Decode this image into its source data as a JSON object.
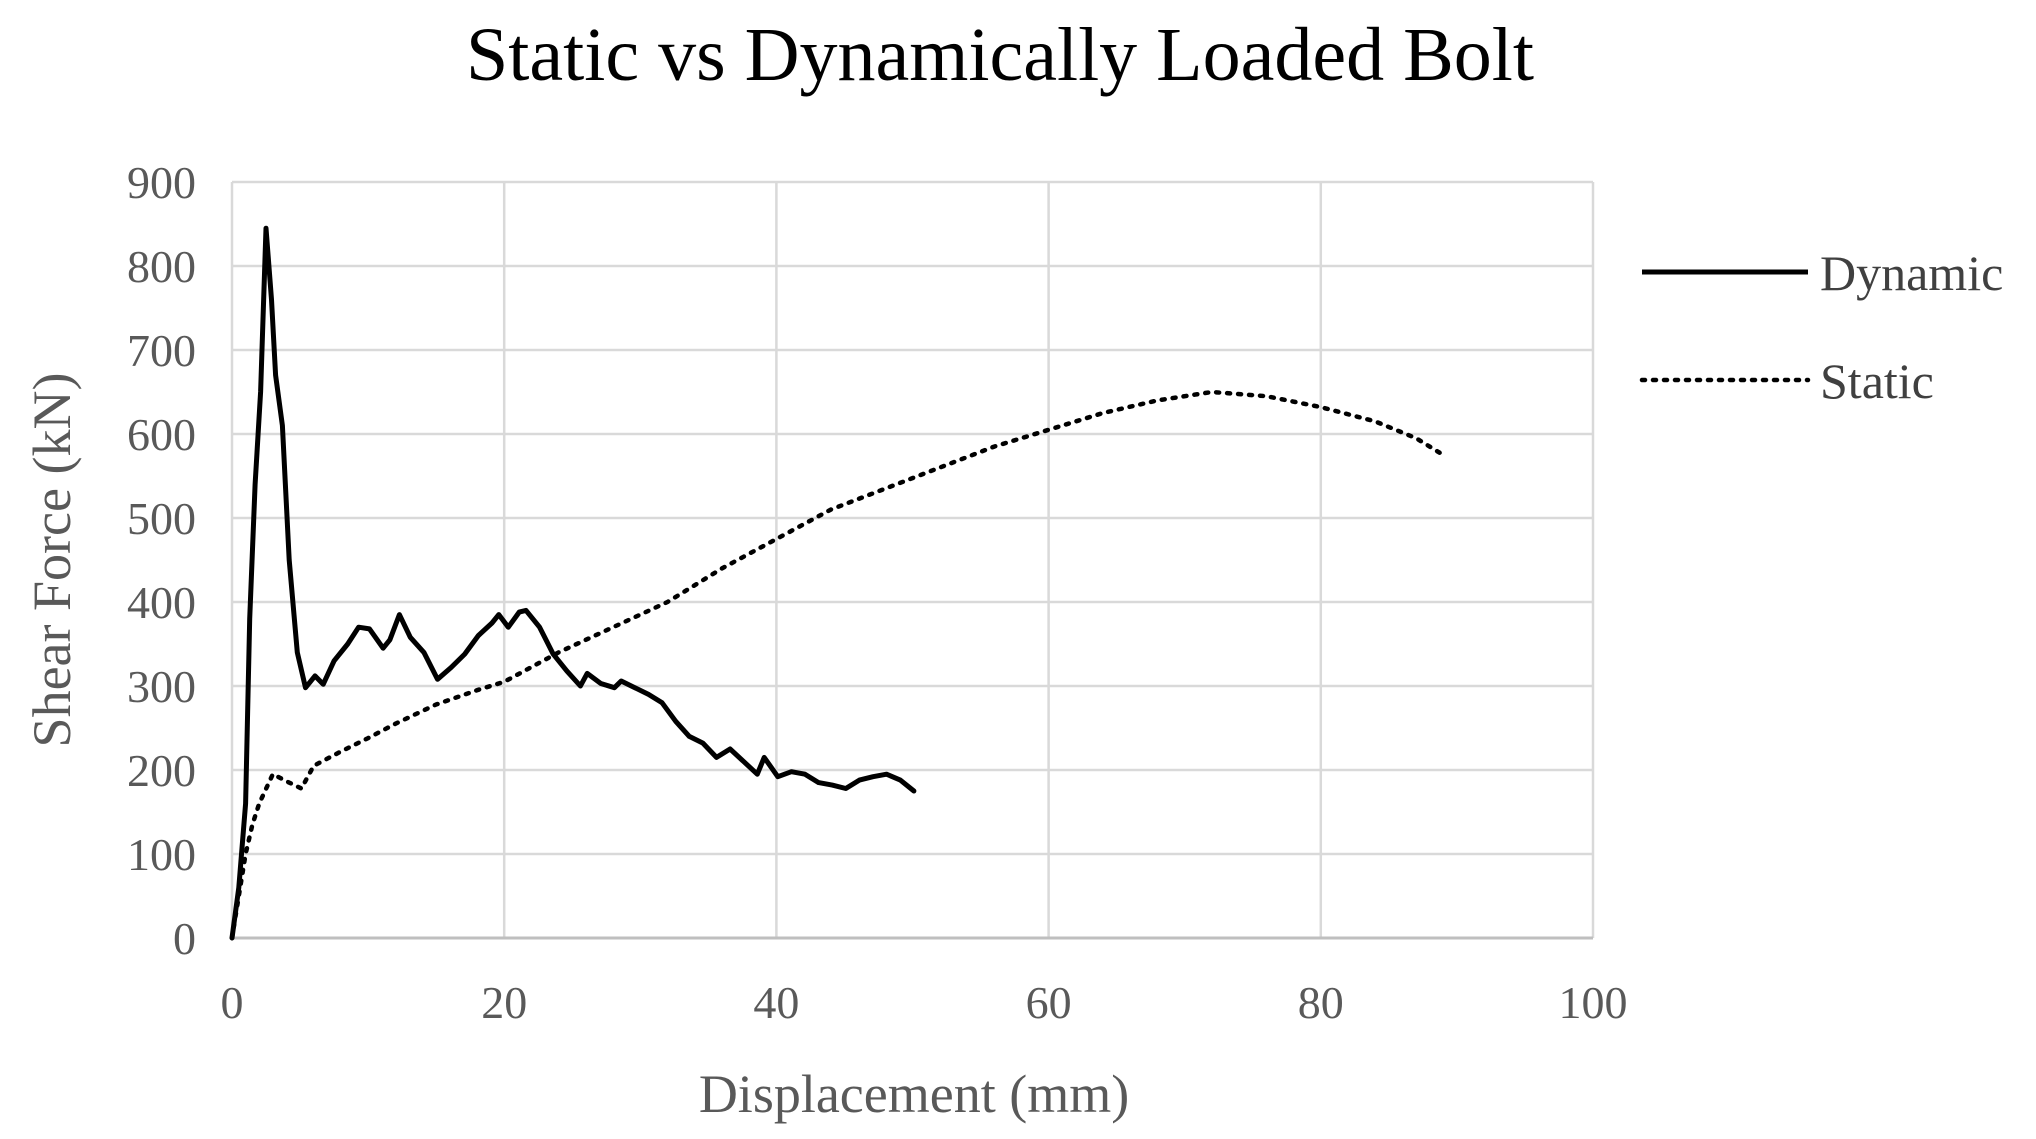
{
  "chart_data": {
    "type": "line",
    "title": "Static vs Dynamically Loaded Bolt",
    "xlabel": "Displacement (mm)",
    "ylabel": "Shear Force (kN)",
    "xlim": [
      0,
      100
    ],
    "ylim": [
      0,
      900
    ],
    "x_ticks": [
      0,
      20,
      40,
      60,
      80,
      100
    ],
    "y_ticks": [
      0,
      100,
      200,
      300,
      400,
      500,
      600,
      700,
      800,
      900
    ],
    "grid": true,
    "legend_position": "right",
    "series": [
      {
        "name": "Dynamic",
        "style": "solid",
        "color": "#000000",
        "points": [
          [
            0,
            0
          ],
          [
            0.5,
            60
          ],
          [
            1,
            160
          ],
          [
            1.3,
            380
          ],
          [
            1.7,
            540
          ],
          [
            2.1,
            650
          ],
          [
            2.5,
            845
          ],
          [
            2.9,
            760
          ],
          [
            3.2,
            670
          ],
          [
            3.7,
            610
          ],
          [
            4.2,
            450
          ],
          [
            4.8,
            340
          ],
          [
            5.4,
            298
          ],
          [
            6.1,
            312
          ],
          [
            6.7,
            302
          ],
          [
            7.5,
            330
          ],
          [
            8.5,
            350
          ],
          [
            9.3,
            370
          ],
          [
            10.1,
            368
          ],
          [
            11.1,
            345
          ],
          [
            11.6,
            355
          ],
          [
            12.3,
            385
          ],
          [
            13.1,
            358
          ],
          [
            14.1,
            340
          ],
          [
            15.1,
            308
          ],
          [
            16.1,
            322
          ],
          [
            17.1,
            338
          ],
          [
            18.1,
            360
          ],
          [
            19.1,
            375
          ],
          [
            19.6,
            385
          ],
          [
            20.3,
            370
          ],
          [
            21.1,
            388
          ],
          [
            21.6,
            390
          ],
          [
            22.6,
            370
          ],
          [
            23.6,
            338
          ],
          [
            24.6,
            318
          ],
          [
            25.6,
            300
          ],
          [
            26.1,
            315
          ],
          [
            27.1,
            303
          ],
          [
            28.1,
            298
          ],
          [
            28.6,
            306
          ],
          [
            29.6,
            298
          ],
          [
            30.6,
            290
          ],
          [
            31.6,
            280
          ],
          [
            32.6,
            258
          ],
          [
            33.6,
            240
          ],
          [
            34.6,
            232
          ],
          [
            35.6,
            215
          ],
          [
            36.6,
            225
          ],
          [
            37.6,
            210
          ],
          [
            38.6,
            195
          ],
          [
            39.1,
            215
          ],
          [
            40.1,
            192
          ],
          [
            41.1,
            198
          ],
          [
            42.1,
            195
          ],
          [
            43.1,
            185
          ],
          [
            44.1,
            182
          ],
          [
            45.1,
            178
          ],
          [
            46.1,
            188
          ],
          [
            47.1,
            192
          ],
          [
            48.1,
            195
          ],
          [
            49.1,
            188
          ],
          [
            50.1,
            175
          ]
        ]
      },
      {
        "name": "Static",
        "style": "dotted",
        "color": "#000000",
        "points": [
          [
            0,
            0
          ],
          [
            0.5,
            50
          ],
          [
            1,
            100
          ],
          [
            1.5,
            135
          ],
          [
            2,
            160
          ],
          [
            3,
            195
          ],
          [
            4.2,
            185
          ],
          [
            5.1,
            178
          ],
          [
            6,
            205
          ],
          [
            8,
            222
          ],
          [
            10,
            238
          ],
          [
            12,
            255
          ],
          [
            15,
            278
          ],
          [
            18,
            295
          ],
          [
            20,
            305
          ],
          [
            24,
            340
          ],
          [
            28,
            370
          ],
          [
            32,
            400
          ],
          [
            36,
            440
          ],
          [
            40,
            475
          ],
          [
            44,
            510
          ],
          [
            48,
            535
          ],
          [
            52,
            560
          ],
          [
            56,
            585
          ],
          [
            60,
            605
          ],
          [
            64,
            625
          ],
          [
            68,
            640
          ],
          [
            72,
            650
          ],
          [
            76,
            645
          ],
          [
            80,
            632
          ],
          [
            84,
            615
          ],
          [
            87,
            595
          ],
          [
            89,
            575
          ]
        ]
      }
    ]
  }
}
